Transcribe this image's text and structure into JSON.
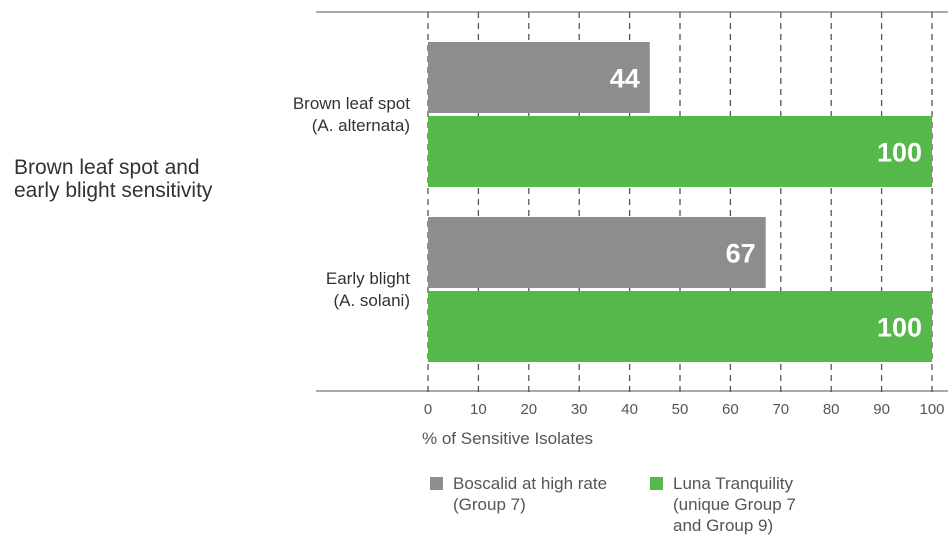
{
  "side_title": "Brown leaf spot and\nearly blight sensitivity",
  "colors": {
    "boscalid": "#8d8c8e",
    "luna": "#55b84a",
    "grid": "#555555"
  },
  "chart_data": {
    "type": "bar",
    "orientation": "horizontal",
    "categories": [
      "Brown leaf spot\n(A. alternata)",
      "Early blight\n(A. solani)"
    ],
    "series": [
      {
        "name": "Boscalid at high rate\n(Group 7)",
        "values": [
          44,
          67
        ]
      },
      {
        "name": "Luna Tranquility\n(unique Group 7\nand Group 9)",
        "values": [
          100,
          100
        ]
      }
    ],
    "xlabel": "% of Sensitive Isolates",
    "xlim": [
      0,
      100
    ],
    "xticks": [
      "0",
      "10",
      "20",
      "30",
      "40",
      "50",
      "60",
      "70",
      "80",
      "90",
      "100"
    ],
    "data_labels": [
      "44",
      "67",
      "100",
      "100"
    ],
    "grid": true,
    "legend_position": "bottom"
  }
}
